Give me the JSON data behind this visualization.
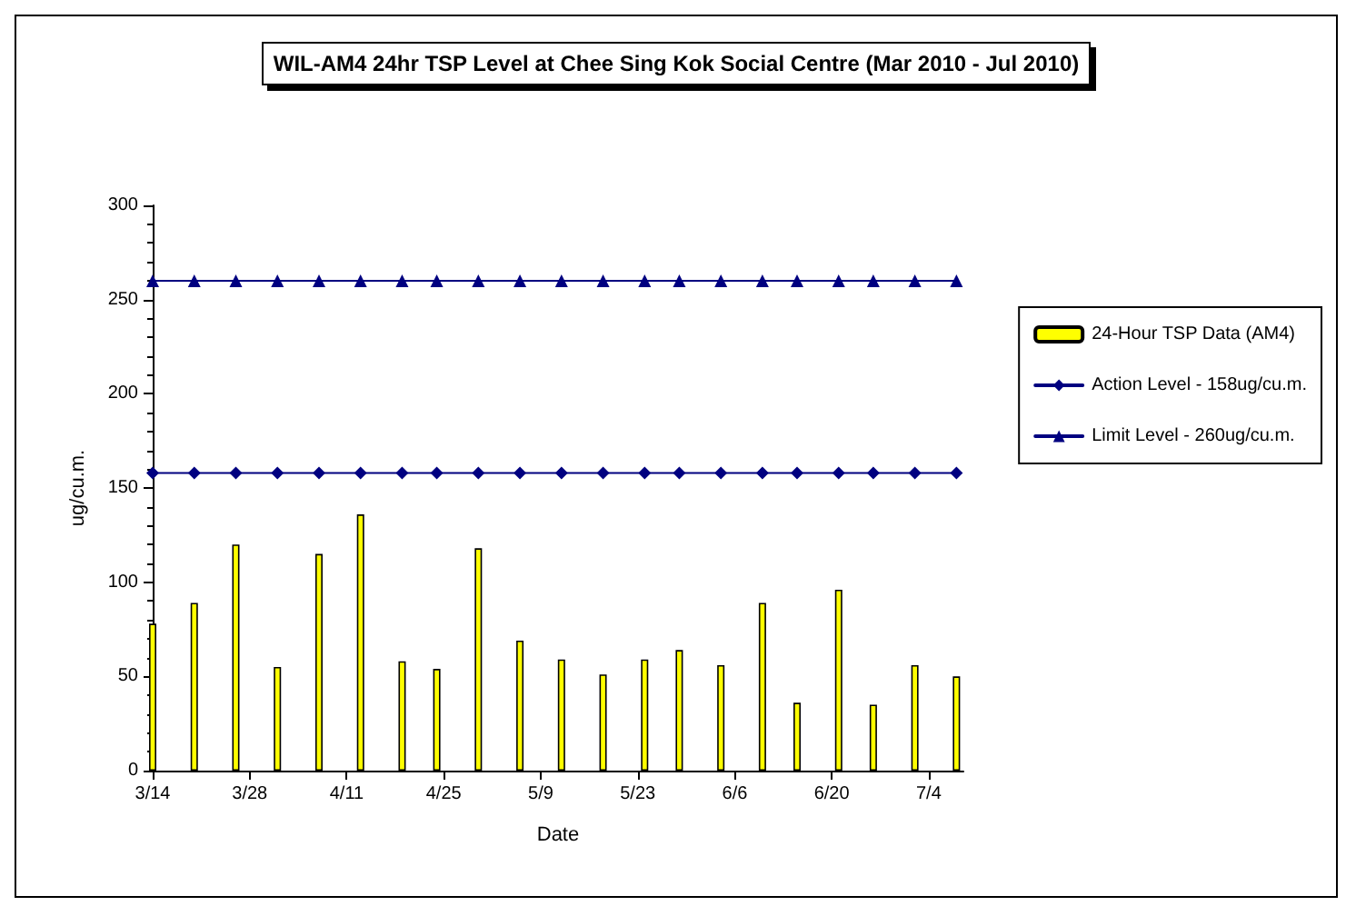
{
  "chart_data": {
    "type": "bar",
    "title": "WIL-AM4 24hr TSP Level at Chee Sing Kok Social Centre (Mar 2010 - Jul 2010)",
    "xlabel": "Date",
    "ylabel": "ug/cu.m.",
    "x": [
      "--03-14",
      "--03-20",
      "--03-26",
      "--04-01",
      "--04-07",
      "--04-13",
      "--04-19",
      "--04-24",
      "--04-30",
      "--05-06",
      "--05-12",
      "--05-18",
      "--05-24",
      "--05-29",
      "--06-04",
      "--06-10",
      "--06-15",
      "--06-21",
      "--06-26",
      "--07-02",
      "--07-08"
    ],
    "series": [
      {
        "name": "24-Hour TSP Data (AM4)",
        "color": "#ffff00",
        "values": [
          78,
          89,
          120,
          55,
          115,
          136,
          58,
          54,
          118,
          69,
          59,
          51,
          59,
          64,
          56,
          89,
          36,
          96,
          35,
          56,
          50
        ]
      },
      {
        "name": "Action Level - 158ug/cu.m.",
        "type": "line",
        "color": "#000080",
        "marker": "diamond",
        "values": [
          158,
          158,
          158,
          158,
          158,
          158,
          158,
          158,
          158,
          158,
          158,
          158,
          158,
          158,
          158,
          158,
          158,
          158,
          158,
          158,
          158
        ]
      },
      {
        "name": "Limit Level - 260ug/cu.m.",
        "type": "line",
        "color": "#000080",
        "marker": "triangle",
        "values": [
          260,
          260,
          260,
          260,
          260,
          260,
          260,
          260,
          260,
          260,
          260,
          260,
          260,
          260,
          260,
          260,
          260,
          260,
          260,
          260,
          260
        ]
      }
    ],
    "xlim": [
      "--03-14",
      "--07-09"
    ],
    "xticks": [
      {
        "value": "--03-14",
        "label": "3/14"
      },
      {
        "value": "--03-28",
        "label": "3/28"
      },
      {
        "value": "--04-11",
        "label": "4/11"
      },
      {
        "value": "--04-25",
        "label": "4/25"
      },
      {
        "value": "--05-09",
        "label": "5/9"
      },
      {
        "value": "--05-23",
        "label": "5/23"
      },
      {
        "value": "--06-06",
        "label": "6/6"
      },
      {
        "value": "--06-20",
        "label": "6/20"
      },
      {
        "value": "--07-04",
        "label": "7/4"
      }
    ],
    "ylim": [
      0,
      300
    ],
    "yticks": [
      0,
      50,
      100,
      150,
      200,
      250,
      300
    ],
    "grid": false,
    "legend": "right",
    "line_style": "solid"
  }
}
